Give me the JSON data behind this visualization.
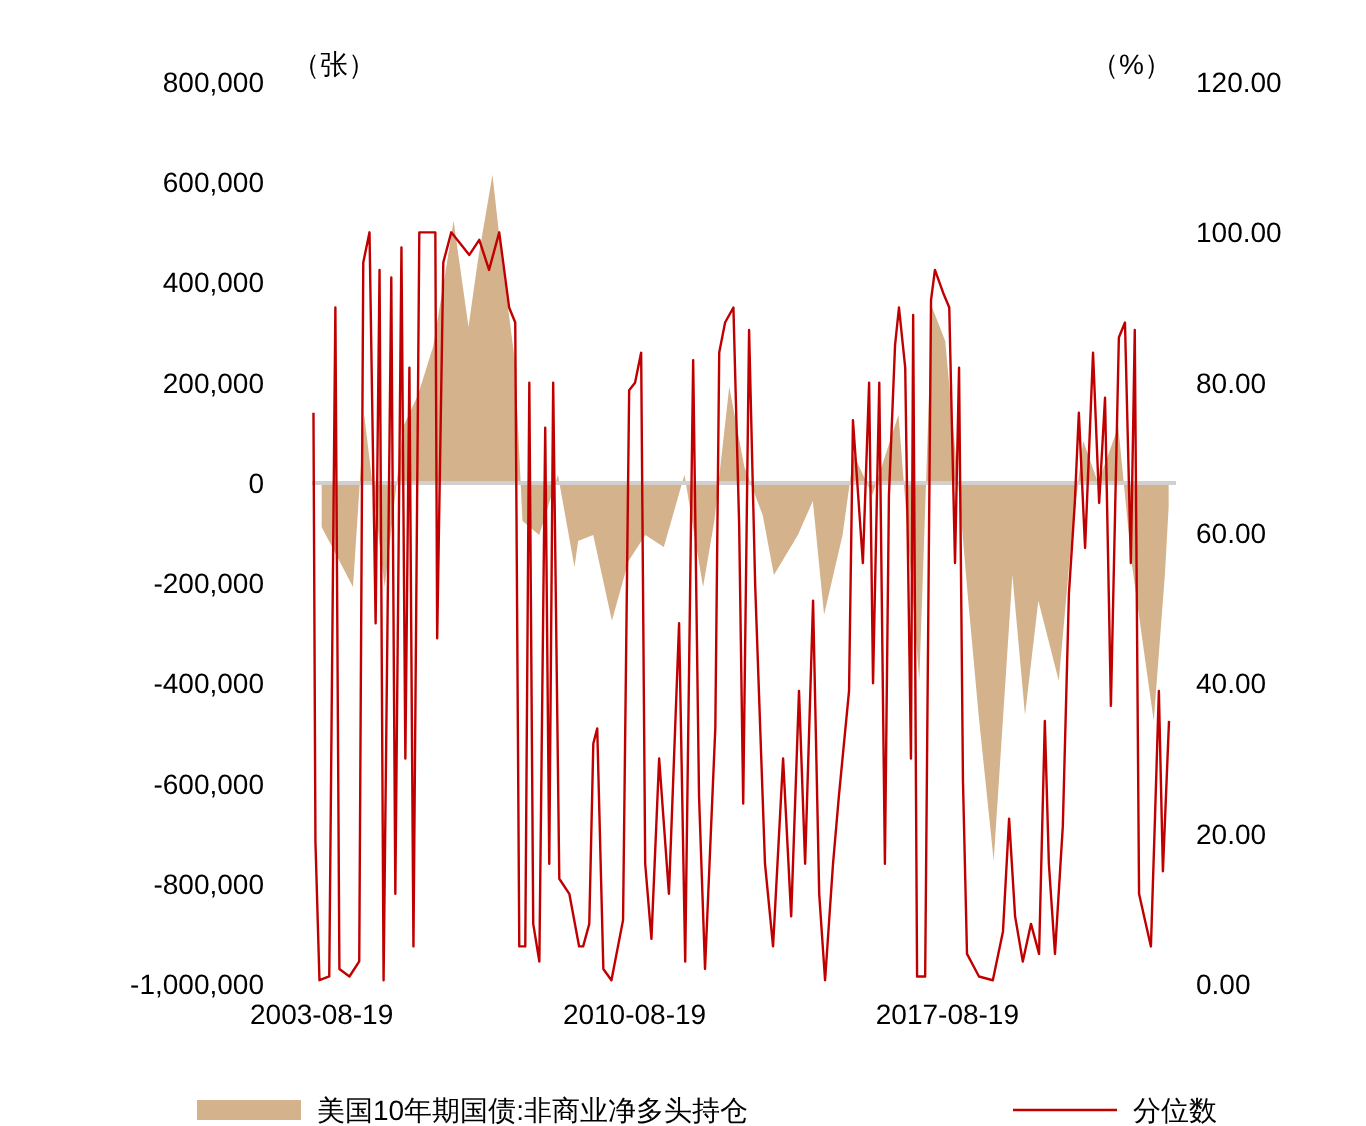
{
  "chart_data": {
    "type": "line",
    "ylabel": "（张）",
    "y2label": "（%）",
    "legend": "bottom",
    "xlim": [
      "2003-06-01",
      "2022-09-30"
    ],
    "xticks": [
      "2003-08-19",
      "2010-08-19",
      "2017-08-19"
    ],
    "ylim": [
      -1000000,
      800000
    ],
    "yticks": [
      {
        "value": 800000,
        "label": "800,000"
      },
      {
        "value": 600000,
        "label": "600,000"
      },
      {
        "value": 400000,
        "label": "400,000"
      },
      {
        "value": 200000,
        "label": "200,000"
      },
      {
        "value": 0,
        "label": "0"
      },
      {
        "value": -200000,
        "label": "-200,000"
      },
      {
        "value": -400000,
        "label": "-400,000"
      },
      {
        "value": -600000,
        "label": "-600,000"
      },
      {
        "value": -800000,
        "label": "-800,000"
      },
      {
        "value": -1000000,
        "label": "-1,000,000"
      }
    ],
    "y2lim": [
      0,
      120
    ],
    "y2ticks": [
      {
        "value": 120,
        "label": "120.00"
      },
      {
        "value": 100,
        "label": "100.00"
      },
      {
        "value": 80,
        "label": "80.00"
      },
      {
        "value": 60,
        "label": "60.00"
      },
      {
        "value": 40,
        "label": "40.00"
      },
      {
        "value": 20,
        "label": "20.00"
      },
      {
        "value": 0,
        "label": "0.00"
      }
    ],
    "ref_lines": [
      {
        "axis": "y",
        "value": 0,
        "color": "#d0d0d0"
      }
    ],
    "series": [
      {
        "name": "美国10年期国债:非商业净多头持仓",
        "type": "area",
        "color": "#d4b28c",
        "x": [
          "2003-08-19",
          "2004-05-01",
          "2004-08-01",
          "2005-01-15",
          "2005-06-15",
          "2005-10-15",
          "2006-02-15",
          "2006-05-15",
          "2006-08-01",
          "2006-12-01",
          "2007-02-15",
          "2007-06-15",
          "2007-09-01",
          "2007-12-15",
          "2008-02-15",
          "2008-07-01",
          "2008-12-01",
          "2009-04-15",
          "2009-05-15",
          "2009-09-15",
          "2010-02-15",
          "2010-07-01",
          "2010-11-15",
          "2011-04-15",
          "2011-10-01",
          "2012-03-01",
          "2012-06-01",
          "2012-10-01",
          "2013-02-01",
          "2013-07-01",
          "2013-10-01",
          "2014-04-15",
          "2014-08-15",
          "2014-11-15",
          "2015-04-15",
          "2015-07-15",
          "2015-12-15",
          "2016-07-15",
          "2017-01-01",
          "2017-04-15",
          "2017-08-01",
          "2017-11-15",
          "2018-02-01",
          "2018-05-01",
          "2018-09-01",
          "2019-02-01",
          "2019-05-15",
          "2019-09-01",
          "2020-02-15",
          "2020-06-01",
          "2020-09-01",
          "2021-01-01",
          "2021-06-15",
          "2021-10-01",
          "2022-01-15",
          "2022-04-01",
          "2022-07-01",
          "2022-08-01"
        ],
        "values": [
          -88000,
          -208000,
          136000,
          -208000,
          112000,
          176000,
          272000,
          403000,
          523000,
          311000,
          443000,
          615000,
          443000,
          243000,
          -76000,
          -104000,
          16000,
          -168000,
          -116000,
          -104000,
          -275000,
          -156000,
          -104000,
          -128000,
          16000,
          -208000,
          -76000,
          192000,
          32000,
          -64000,
          -184000,
          -104000,
          -36000,
          -263000,
          -104000,
          56000,
          -24000,
          136000,
          -395000,
          351000,
          283000,
          0,
          -224000,
          -463000,
          -754000,
          -184000,
          -463000,
          -235000,
          -395000,
          -104000,
          84000,
          0,
          112000,
          -156000,
          -343000,
          -475000,
          -184000,
          -48000
        ]
      },
      {
        "name": "分位数",
        "axis": "y2",
        "color": "#c00000",
        "x": [
          "2003-06-13",
          "2003-06-29",
          "2003-08-01",
          "2003-10-20",
          "2003-12-09",
          "2004-01-11",
          "2004-04-02",
          "2004-06-21",
          "2004-07-24",
          "2004-09-13",
          "2004-11-02",
          "2004-12-04",
          "2005-01-06",
          "2005-03-10",
          "2005-04-12",
          "2005-06-01",
          "2005-07-03",
          "2005-08-05",
          "2005-09-07",
          "2005-10-25",
          "2006-03-05",
          "2006-03-20",
          "2006-05-09",
          "2006-07-13",
          "2006-12-08",
          "2007-02-27",
          "2007-05-18",
          "2007-08-09",
          "2007-10-29",
          "2007-12-18",
          "2008-01-20",
          "2008-03-09",
          "2008-04-11",
          "2008-05-13",
          "2008-07-02",
          "2008-08-19",
          "2008-09-21",
          "2008-10-23",
          "2008-12-12",
          "2009-03-04",
          "2009-05-23",
          "2009-06-25",
          "2009-08-14",
          "2009-09-16",
          "2009-10-18",
          "2009-12-07",
          "2010-02-11",
          "2010-05-17",
          "2010-07-06",
          "2010-08-23",
          "2010-10-12",
          "2010-11-14",
          "2011-01-04",
          "2011-03-08",
          "2011-05-27",
          "2011-08-18",
          "2011-10-07",
          "2011-12-11",
          "2012-01-28",
          "2012-03-17",
          "2012-06-09",
          "2012-07-11",
          "2012-08-28",
          "2012-11-04",
          "2012-12-21",
          "2013-01-23",
          "2013-03-12",
          "2013-05-01",
          "2013-07-20",
          "2013-09-24",
          "2013-12-15",
          "2014-02-19",
          "2014-04-24",
          "2014-06-13",
          "2014-08-17",
          "2014-10-06",
          "2014-11-23",
          "2015-01-27",
          "2015-03-16",
          "2015-06-07",
          "2015-07-09",
          "2015-09-28",
          "2015-11-18",
          "2015-12-20",
          "2016-02-09",
          "2016-03-26",
          "2016-04-28",
          "2016-06-17",
          "2016-07-19",
          "2016-09-08",
          "2016-10-25",
          "2016-11-12",
          "2016-12-14",
          "2017-02-18",
          "2017-04-07",
          "2017-05-09",
          "2017-07-14",
          "2017-09-03",
          "2017-10-20",
          "2017-11-22",
          "2017-12-24",
          "2018-01-26",
          "2018-05-04",
          "2018-08-25",
          "2018-11-16",
          "2019-01-05",
          "2019-02-23",
          "2019-04-27",
          "2019-07-03",
          "2019-09-07",
          "2019-10-24",
          "2019-11-26",
          "2020-01-15",
          "2020-03-19",
          "2020-05-08",
          "2020-06-25",
          "2020-07-28",
          "2020-09-17",
          "2020-11-21",
          "2021-01-10",
          "2021-02-27",
          "2021-04-16",
          "2021-06-20",
          "2021-08-09",
          "2021-09-26",
          "2021-10-28",
          "2021-12-02",
          "2022-01-19",
          "2022-03-09",
          "2022-04-11",
          "2022-05-13",
          "2022-06-15",
          "2022-08-04"
        ],
        "values": [
          76,
          19,
          0.5,
          1,
          90,
          2,
          1,
          3,
          96,
          100,
          48,
          95,
          0.5,
          94,
          12,
          98,
          30,
          82,
          5,
          100,
          100,
          46,
          96,
          100,
          97,
          99,
          95,
          100,
          90,
          88,
          5,
          5,
          80,
          8,
          3,
          74,
          16,
          80,
          14,
          12,
          5,
          5,
          8,
          32,
          34,
          2,
          0.5,
          8.5,
          79,
          80,
          84,
          16,
          6,
          30,
          12,
          48,
          3,
          83,
          25,
          2,
          34,
          84,
          88,
          90,
          61,
          24,
          87,
          53,
          16,
          5,
          30,
          9,
          39,
          16,
          51,
          12,
          0.5,
          16,
          25,
          39,
          75,
          56,
          80,
          40,
          80,
          16,
          65,
          85,
          90,
          82,
          30,
          89,
          1,
          1,
          91,
          95,
          92,
          90,
          56,
          82,
          27,
          4,
          1,
          0.5,
          7,
          22,
          9,
          3,
          8,
          4,
          35,
          16,
          4,
          21,
          52,
          64,
          76,
          58,
          84,
          64,
          78,
          37,
          86,
          88,
          56,
          87,
          12,
          8.5,
          5,
          22,
          39,
          15,
          35
        ]
      }
    ]
  }
}
